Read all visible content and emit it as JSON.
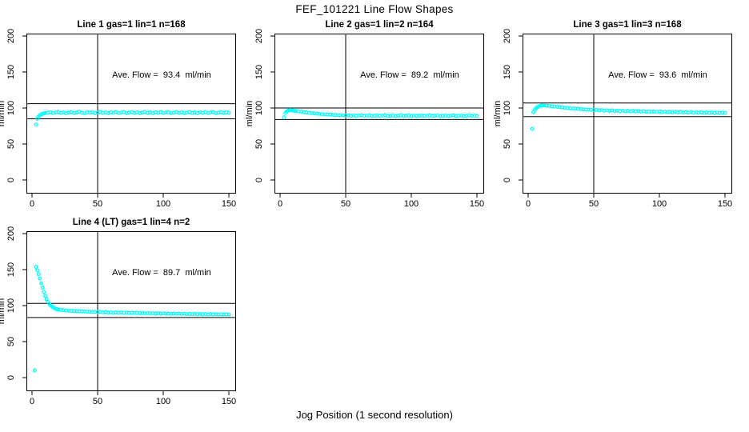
{
  "figure": {
    "title": "FEF_101221  Line Flow Shapes",
    "xlabel": "Jog Position (1 second resolution)",
    "ylabel": "ml/min",
    "point_color": "#00ffff",
    "line_color": "#000000"
  },
  "chart_data": [
    {
      "type": "scatter",
      "title": "Line 1 gas=1 lin=1 n=168",
      "annotation": "Ave. Flow =  93.4  ml/min",
      "avg_flow_ml_min": 93.4,
      "ylabel": "ml/min",
      "x_ticks": [
        0,
        50,
        100,
        150
      ],
      "y_ticks": [
        0,
        50,
        100,
        150,
        200
      ],
      "xlim": [
        -4,
        156
      ],
      "ylim": [
        -20,
        203
      ],
      "grid": false,
      "vline_x": 50,
      "ref_line_upper": 106,
      "ref_line_lower": 85,
      "points": [
        [
          3,
          77
        ],
        [
          4,
          85
        ],
        [
          5,
          88
        ],
        [
          6,
          90
        ],
        [
          7,
          91.2
        ],
        [
          8,
          92
        ],
        [
          9,
          92.6
        ],
        [
          10,
          93
        ],
        [
          12,
          93.4
        ],
        [
          14,
          94.1
        ],
        [
          16,
          92.9
        ],
        [
          18,
          93.8
        ],
        [
          20,
          94.5
        ],
        [
          22,
          93.2
        ],
        [
          24,
          94.0
        ],
        [
          26,
          92.8
        ],
        [
          28,
          93.6
        ],
        [
          30,
          94.3
        ],
        [
          32,
          93.0
        ],
        [
          34,
          93.9
        ],
        [
          36,
          94.6
        ],
        [
          38,
          93.3
        ],
        [
          40,
          92.9
        ],
        [
          42,
          94.2
        ],
        [
          44,
          93.5
        ],
        [
          46,
          94.0
        ],
        [
          48,
          92.8
        ],
        [
          50,
          93.7
        ],
        [
          52,
          94.4
        ],
        [
          54,
          93.1
        ],
        [
          56,
          93.9
        ],
        [
          58,
          92.7
        ],
        [
          60,
          94.1
        ],
        [
          62,
          93.4
        ],
        [
          64,
          94.5
        ],
        [
          66,
          93.0
        ],
        [
          68,
          93.8
        ],
        [
          70,
          94.2
        ],
        [
          72,
          92.9
        ],
        [
          74,
          93.6
        ],
        [
          76,
          94.3
        ],
        [
          78,
          93.1
        ],
        [
          80,
          94.0
        ],
        [
          82,
          92.8
        ],
        [
          84,
          93.7
        ],
        [
          86,
          94.4
        ],
        [
          88,
          93.2
        ],
        [
          90,
          93.9
        ],
        [
          92,
          92.7
        ],
        [
          94,
          94.1
        ],
        [
          96,
          93.3
        ],
        [
          98,
          94.5
        ],
        [
          100,
          93.0
        ],
        [
          102,
          93.8
        ],
        [
          104,
          94.2
        ],
        [
          106,
          92.9
        ],
        [
          108,
          93.6
        ],
        [
          110,
          94.3
        ],
        [
          112,
          93.1
        ],
        [
          114,
          94.0
        ],
        [
          116,
          92.8
        ],
        [
          118,
          93.7
        ],
        [
          120,
          94.4
        ],
        [
          122,
          93.2
        ],
        [
          124,
          93.9
        ],
        [
          126,
          92.7
        ],
        [
          128,
          94.1
        ],
        [
          130,
          93.3
        ],
        [
          132,
          94.5
        ],
        [
          134,
          93.0
        ],
        [
          136,
          93.8
        ],
        [
          138,
          94.2
        ],
        [
          140,
          92.9
        ],
        [
          142,
          93.6
        ],
        [
          144,
          94.3
        ],
        [
          146,
          93.1
        ],
        [
          148,
          94.0
        ],
        [
          150,
          93.4
        ]
      ]
    },
    {
      "type": "scatter",
      "title": "Line 2 gas=1 lin=2 n=164",
      "annotation": "Ave. Flow =  89.2  ml/min",
      "avg_flow_ml_min": 89.2,
      "ylabel": "ml/min",
      "x_ticks": [
        0,
        50,
        100,
        150
      ],
      "y_ticks": [
        0,
        50,
        100,
        150,
        200
      ],
      "xlim": [
        -4,
        156
      ],
      "ylim": [
        -20,
        203
      ],
      "grid": false,
      "vline_x": 50,
      "ref_line_upper": 100,
      "ref_line_lower": 84,
      "points": [
        [
          3,
          87
        ],
        [
          4,
          93
        ],
        [
          5,
          95
        ],
        [
          6,
          96.3
        ],
        [
          7,
          97
        ],
        [
          8,
          97
        ],
        [
          9,
          96.7
        ],
        [
          10,
          96.3
        ],
        [
          11,
          96
        ],
        [
          12,
          95.8
        ],
        [
          14,
          95.3
        ],
        [
          16,
          94.8
        ],
        [
          18,
          94.3
        ],
        [
          20,
          93.8
        ],
        [
          22,
          93.3
        ],
        [
          24,
          92.9
        ],
        [
          26,
          92.5
        ],
        [
          28,
          92.1
        ],
        [
          30,
          91.8
        ],
        [
          32,
          91.5
        ],
        [
          34,
          91.2
        ],
        [
          36,
          91.0
        ],
        [
          38,
          90.7
        ],
        [
          40,
          90.5
        ],
        [
          42,
          90.3
        ],
        [
          44,
          90.1
        ],
        [
          46,
          89.9
        ],
        [
          48,
          89.8
        ],
        [
          50,
          89.6
        ],
        [
          52,
          89.9
        ],
        [
          54,
          89.2
        ],
        [
          56,
          89.7
        ],
        [
          58,
          88.9
        ],
        [
          60,
          89.5
        ],
        [
          62,
          90.0
        ],
        [
          64,
          88.8
        ],
        [
          66,
          89.4
        ],
        [
          68,
          89.9
        ],
        [
          70,
          88.7
        ],
        [
          72,
          89.3
        ],
        [
          74,
          89.8
        ],
        [
          76,
          88.9
        ],
        [
          78,
          89.5
        ],
        [
          80,
          90.0
        ],
        [
          82,
          88.8
        ],
        [
          84,
          89.2
        ],
        [
          86,
          89.7
        ],
        [
          88,
          88.6
        ],
        [
          90,
          89.4
        ],
        [
          92,
          89.9
        ],
        [
          94,
          88.7
        ],
        [
          96,
          89.3
        ],
        [
          98,
          89.8
        ],
        [
          100,
          88.9
        ],
        [
          102,
          89.5
        ],
        [
          104,
          88.6
        ],
        [
          106,
          89.2
        ],
        [
          108,
          89.7
        ],
        [
          110,
          88.8
        ],
        [
          112,
          89.4
        ],
        [
          114,
          89.9
        ],
        [
          116,
          88.7
        ],
        [
          118,
          89.3
        ],
        [
          120,
          89.8
        ],
        [
          122,
          88.6
        ],
        [
          124,
          89.1
        ],
        [
          126,
          89.6
        ],
        [
          128,
          88.8
        ],
        [
          130,
          89.4
        ],
        [
          132,
          89.9
        ],
        [
          134,
          88.7
        ],
        [
          136,
          89.2
        ],
        [
          138,
          89.7
        ],
        [
          140,
          88.6
        ],
        [
          142,
          89.3
        ],
        [
          144,
          89.8
        ],
        [
          146,
          88.9
        ],
        [
          148,
          89.5
        ],
        [
          150,
          89.0
        ]
      ]
    },
    {
      "type": "scatter",
      "title": "Line 3 gas=1 lin=3 n=168",
      "annotation": "Ave. Flow =  93.6  ml/min",
      "avg_flow_ml_min": 93.6,
      "ylabel": "ml/min",
      "x_ticks": [
        0,
        50,
        100,
        150
      ],
      "y_ticks": [
        0,
        50,
        100,
        150,
        200
      ],
      "xlim": [
        -4,
        156
      ],
      "ylim": [
        -20,
        203
      ],
      "grid": false,
      "vline_x": 50,
      "ref_line_upper": 107,
      "ref_line_lower": 88,
      "points": [
        [
          3,
          71
        ],
        [
          4,
          94
        ],
        [
          5,
          97.5
        ],
        [
          6,
          99.5
        ],
        [
          7,
          101
        ],
        [
          8,
          102
        ],
        [
          9,
          102.8
        ],
        [
          10,
          103.2
        ],
        [
          11,
          103.5
        ],
        [
          12,
          103.5
        ],
        [
          14,
          103.2
        ],
        [
          16,
          102.8
        ],
        [
          18,
          102.4
        ],
        [
          20,
          102
        ],
        [
          22,
          101.6
        ],
        [
          24,
          101.2
        ],
        [
          26,
          100.8
        ],
        [
          28,
          100.4
        ],
        [
          30,
          100
        ],
        [
          32,
          99.7
        ],
        [
          34,
          99.4
        ],
        [
          36,
          99.1
        ],
        [
          38,
          98.8
        ],
        [
          40,
          98.5
        ],
        [
          42,
          98.2
        ],
        [
          44,
          97.9
        ],
        [
          46,
          97.7
        ],
        [
          48,
          97.4
        ],
        [
          50,
          97.2
        ],
        [
          52,
          97.4
        ],
        [
          54,
          96.6
        ],
        [
          56,
          97.1
        ],
        [
          58,
          96.3
        ],
        [
          60,
          96.9
        ],
        [
          62,
          96.1
        ],
        [
          64,
          96.7
        ],
        [
          66,
          95.9
        ],
        [
          68,
          96.5
        ],
        [
          70,
          95.7
        ],
        [
          72,
          96.3
        ],
        [
          74,
          95.5
        ],
        [
          76,
          96.1
        ],
        [
          78,
          95.3
        ],
        [
          80,
          95.9
        ],
        [
          82,
          95.1
        ],
        [
          84,
          95.7
        ],
        [
          86,
          95.0
        ],
        [
          88,
          95.5
        ],
        [
          90,
          94.8
        ],
        [
          92,
          95.3
        ],
        [
          94,
          94.6
        ],
        [
          96,
          95.1
        ],
        [
          98,
          94.5
        ],
        [
          100,
          95.0
        ],
        [
          102,
          94.3
        ],
        [
          104,
          94.8
        ],
        [
          106,
          94.2
        ],
        [
          108,
          94.7
        ],
        [
          110,
          94.0
        ],
        [
          112,
          94.5
        ],
        [
          114,
          93.9
        ],
        [
          116,
          94.4
        ],
        [
          118,
          93.8
        ],
        [
          120,
          94.3
        ],
        [
          122,
          93.7
        ],
        [
          124,
          94.2
        ],
        [
          126,
          93.6
        ],
        [
          128,
          94.1
        ],
        [
          130,
          93.5
        ],
        [
          132,
          94.0
        ],
        [
          134,
          93.4
        ],
        [
          136,
          93.9
        ],
        [
          138,
          93.3
        ],
        [
          140,
          93.8
        ],
        [
          142,
          93.2
        ],
        [
          144,
          93.7
        ],
        [
          146,
          93.1
        ],
        [
          148,
          93.6
        ],
        [
          150,
          93.2
        ]
      ]
    },
    {
      "type": "scatter",
      "title": "Line 4 (LT) gas=1 lin=4 n=2",
      "annotation": "Ave. Flow =  89.7  ml/min",
      "avg_flow_ml_min": 89.7,
      "ylabel": "ml/min",
      "x_ticks": [
        0,
        50,
        100,
        150
      ],
      "y_ticks": [
        0,
        50,
        100,
        150,
        200
      ],
      "xlim": [
        -4,
        156
      ],
      "ylim": [
        -20,
        203
      ],
      "grid": false,
      "vline_x": 50,
      "ref_line_upper": 103,
      "ref_line_lower": 83.5,
      "points": [
        [
          2,
          10
        ],
        [
          3,
          154
        ],
        [
          4,
          149
        ],
        [
          5,
          143.5
        ],
        [
          6,
          137.5
        ],
        [
          7,
          131
        ],
        [
          8,
          125
        ],
        [
          9,
          119
        ],
        [
          10,
          113.5
        ],
        [
          11,
          109
        ],
        [
          12,
          105.5
        ],
        [
          13,
          102.5
        ],
        [
          14,
          100.5
        ],
        [
          15,
          99
        ],
        [
          16,
          97.7
        ],
        [
          17,
          96.6
        ],
        [
          18,
          95.7
        ],
        [
          19,
          95
        ],
        [
          20,
          94.4
        ],
        [
          22,
          93.9
        ],
        [
          24,
          93.5
        ],
        [
          26,
          93.2
        ],
        [
          28,
          92.9
        ],
        [
          30,
          92.7
        ],
        [
          32,
          92.5
        ],
        [
          34,
          92.3
        ],
        [
          36,
          92.1
        ],
        [
          38,
          91.9
        ],
        [
          40,
          91.8
        ],
        [
          42,
          91.6
        ],
        [
          44,
          91.5
        ],
        [
          46,
          91.3
        ],
        [
          48,
          91.2
        ],
        [
          50,
          91.1
        ],
        [
          52,
          91.3
        ],
        [
          54,
          90.6
        ],
        [
          56,
          91.1
        ],
        [
          58,
          90.3
        ],
        [
          60,
          90.9
        ],
        [
          62,
          90.1
        ],
        [
          64,
          90.7
        ],
        [
          66,
          90.0
        ],
        [
          68,
          90.5
        ],
        [
          70,
          89.8
        ],
        [
          72,
          90.3
        ],
        [
          74,
          89.6
        ],
        [
          76,
          90.1
        ],
        [
          78,
          89.5
        ],
        [
          80,
          90.0
        ],
        [
          82,
          89.3
        ],
        [
          84,
          89.8
        ],
        [
          86,
          89.2
        ],
        [
          88,
          89.7
        ],
        [
          90,
          89.0
        ],
        [
          92,
          89.5
        ],
        [
          94,
          88.9
        ],
        [
          96,
          89.4
        ],
        [
          98,
          88.8
        ],
        [
          100,
          89.2
        ],
        [
          102,
          88.6
        ],
        [
          104,
          89.1
        ],
        [
          106,
          88.5
        ],
        [
          108,
          89.0
        ],
        [
          110,
          88.4
        ],
        [
          112,
          88.9
        ],
        [
          114,
          88.3
        ],
        [
          116,
          88.8
        ],
        [
          118,
          88.2
        ],
        [
          120,
          88.7
        ],
        [
          122,
          88.1
        ],
        [
          124,
          88.6
        ],
        [
          126,
          88.0
        ],
        [
          128,
          88.5
        ],
        [
          130,
          87.9
        ],
        [
          132,
          88.4
        ],
        [
          134,
          87.8
        ],
        [
          136,
          88.3
        ],
        [
          138,
          87.7
        ],
        [
          140,
          88.2
        ],
        [
          142,
          87.6
        ],
        [
          144,
          88.1
        ],
        [
          146,
          87.5
        ],
        [
          148,
          88.0
        ],
        [
          150,
          87.6
        ]
      ]
    }
  ]
}
